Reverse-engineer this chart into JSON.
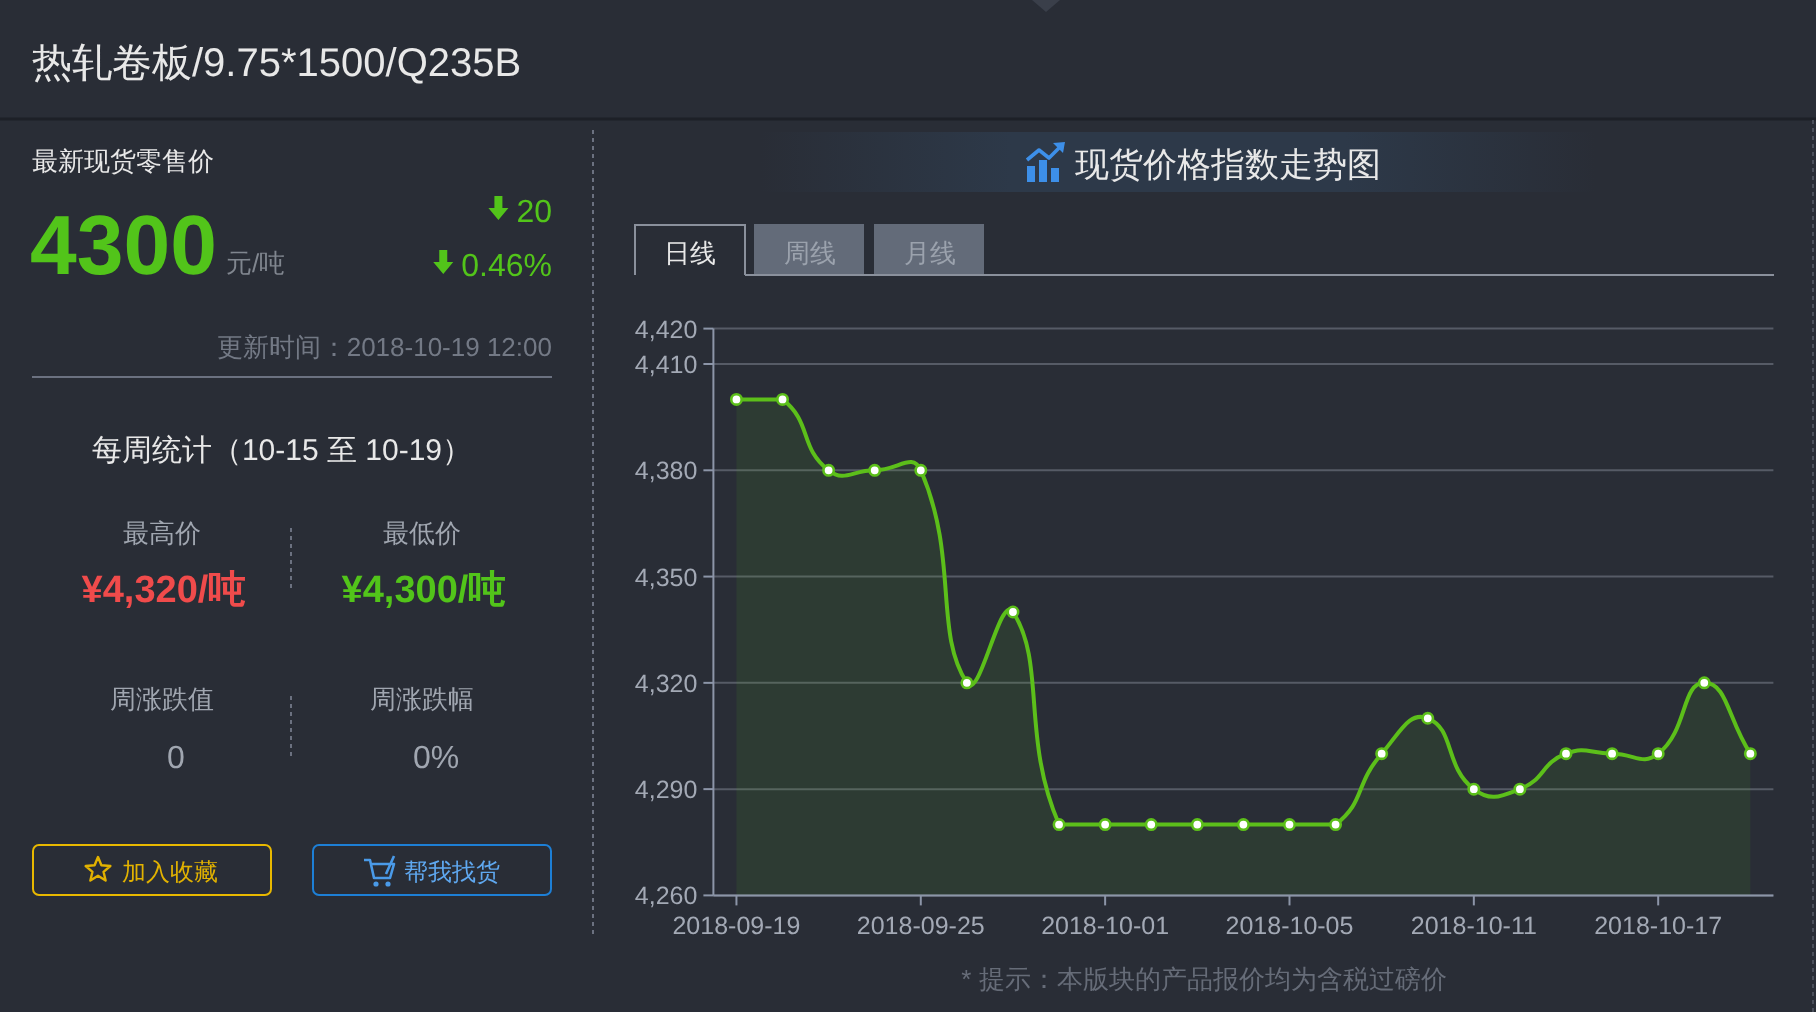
{
  "chart_data": [
    {
      "type": "other",
      "title": "热轧卷板/9.75*1500/Q235B",
      "annotations": [
        "最新现货零售价",
        "4300",
        "元/吨",
        "20",
        "0.46%",
        "更新时间：2018-10-19 12:00",
        "每周统计（10-15 至 10-19）",
        "最高价",
        "¥4,320/吨",
        "最低价",
        "¥4,300/吨",
        "周涨跌值",
        "0",
        "周涨跌幅",
        "0%",
        "加入收藏",
        "帮我找货"
      ]
    },
    {
      "type": "area",
      "title": "现货价格指数走势图",
      "categories": [
        "2018-09-19",
        null,
        null,
        null,
        "2018-09-25",
        null,
        null,
        null,
        "2018-10-01",
        null,
        null,
        null,
        "2018-10-05",
        null,
        null,
        null,
        "2018-10-11",
        null,
        null,
        null,
        "2018-10-17",
        null,
        null
      ],
      "values": [
        4400,
        4400,
        4380,
        4380,
        4380,
        4320,
        4340,
        4280,
        4280,
        4280,
        4280,
        4280,
        4280,
        4280,
        4300,
        4310,
        4290,
        4290,
        4300,
        4300,
        4300,
        4320,
        4300
      ],
      "color": "#5cbf1a",
      "ylim": [
        4260,
        4420
      ],
      "yticks": [
        {
          "value": 4260,
          "label": "4,260"
        },
        {
          "value": 4290,
          "label": "4,290"
        },
        {
          "value": 4320,
          "label": "4,320"
        },
        {
          "value": 4350,
          "label": "4,350"
        },
        {
          "value": 4380,
          "label": "4,380"
        },
        {
          "value": 4410,
          "label": "4,410"
        },
        {
          "value": 4420,
          "label": "4,420"
        }
      ],
      "grid": "y",
      "marker": "circle",
      "line_style": "solid",
      "annotations": [
        "日线",
        "周线",
        "月线",
        "* 提示：本版块的产品报价均为含税过磅价"
      ]
    }
  ]
}
